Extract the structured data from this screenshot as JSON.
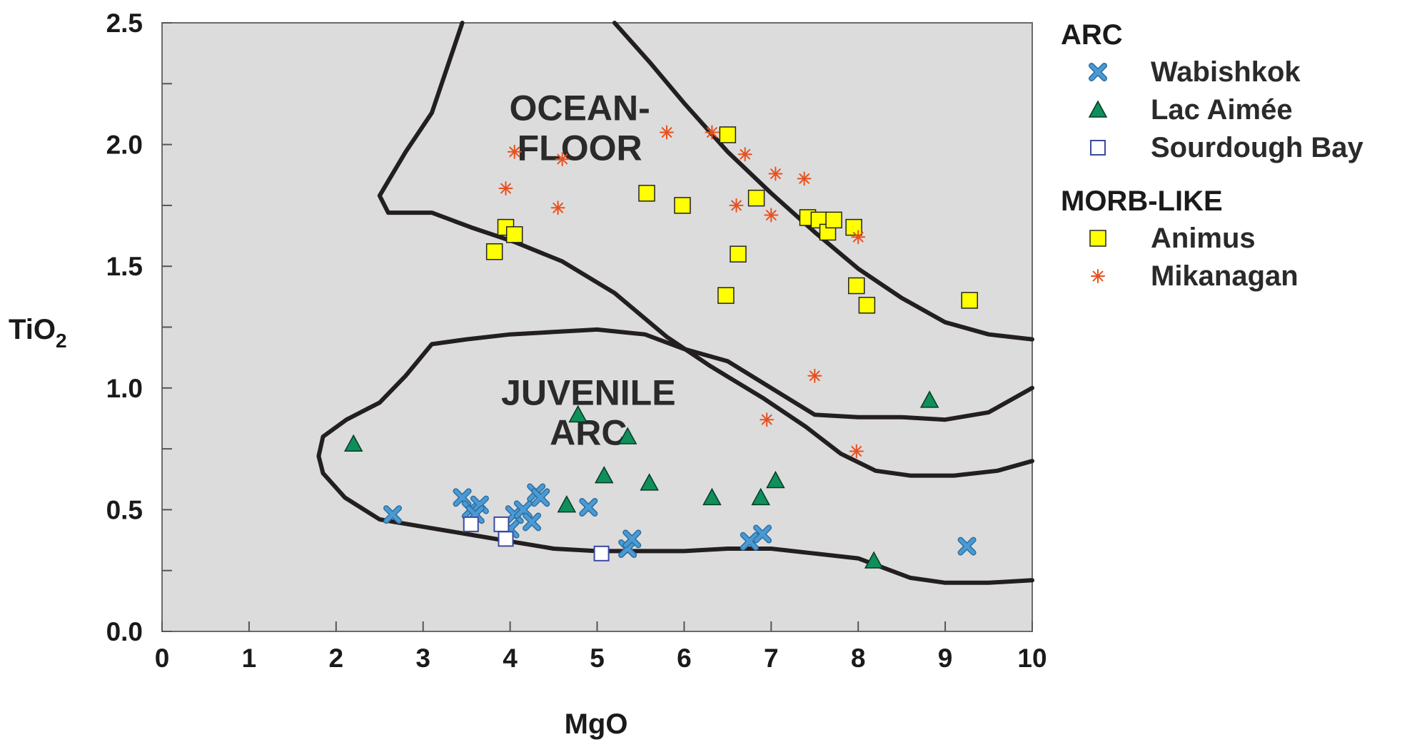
{
  "chart_data": {
    "type": "scatter",
    "xlabel": "MgO",
    "ylabel_main": "TiO",
    "ylabel_sub": "2",
    "xlim": [
      0,
      10
    ],
    "ylim": [
      0,
      2.5
    ],
    "xticks": [
      "0",
      "1",
      "2",
      "3",
      "4",
      "5",
      "6",
      "7",
      "8",
      "9",
      "10"
    ],
    "yticks": [
      "0.0",
      "0.5",
      "1.0",
      "1.5",
      "2.0",
      "2.5"
    ],
    "grid": false,
    "background": "#dcdcdc",
    "field_labels": [
      {
        "lines": [
          "OCEAN-",
          "FLOOR"
        ],
        "x": 4.8,
        "y": 2.1
      },
      {
        "lines": [
          "JUVENILE",
          "ARC"
        ],
        "x": 4.9,
        "y": 0.93
      }
    ],
    "legend_groups": [
      {
        "heading": "ARC",
        "series": [
          "Wabishkok",
          "Lac Aimée",
          "Sourdough Bay"
        ]
      },
      {
        "heading": "MORB-LIKE",
        "series": [
          "Animus",
          "Mikanagan"
        ]
      }
    ],
    "series": [
      {
        "name": "Wabishkok",
        "marker": "x",
        "color": "#4a9ad6",
        "points": [
          [
            2.65,
            0.48
          ],
          [
            3.45,
            0.55
          ],
          [
            3.55,
            0.5
          ],
          [
            3.65,
            0.52
          ],
          [
            3.6,
            0.48
          ],
          [
            4.0,
            0.42
          ],
          [
            4.05,
            0.48
          ],
          [
            4.15,
            0.5
          ],
          [
            4.25,
            0.45
          ],
          [
            4.3,
            0.57
          ],
          [
            4.35,
            0.55
          ],
          [
            4.9,
            0.51
          ],
          [
            5.35,
            0.34
          ],
          [
            5.4,
            0.38
          ],
          [
            6.75,
            0.37
          ],
          [
            6.9,
            0.4
          ],
          [
            9.25,
            0.35
          ]
        ]
      },
      {
        "name": "Lac Aimée",
        "marker": "triangle",
        "color": "#0f8f5a",
        "points": [
          [
            2.2,
            0.77
          ],
          [
            4.65,
            0.52
          ],
          [
            4.78,
            0.89
          ],
          [
            5.08,
            0.64
          ],
          [
            5.35,
            0.8
          ],
          [
            5.6,
            0.61
          ],
          [
            6.32,
            0.55
          ],
          [
            6.88,
            0.55
          ],
          [
            7.05,
            0.62
          ],
          [
            8.18,
            0.29
          ],
          [
            8.82,
            0.95
          ]
        ]
      },
      {
        "name": "Sourdough Bay",
        "marker": "open-square",
        "color": "#ffffff",
        "points": [
          [
            3.55,
            0.44
          ],
          [
            3.9,
            0.44
          ],
          [
            3.95,
            0.38
          ],
          [
            5.05,
            0.32
          ]
        ]
      },
      {
        "name": "Animus",
        "marker": "square",
        "color": "#ffff00",
        "points": [
          [
            3.82,
            1.56
          ],
          [
            3.95,
            1.66
          ],
          [
            4.05,
            1.63
          ],
          [
            5.57,
            1.8
          ],
          [
            5.98,
            1.75
          ],
          [
            6.5,
            2.04
          ],
          [
            6.48,
            1.38
          ],
          [
            6.62,
            1.55
          ],
          [
            6.83,
            1.78
          ],
          [
            7.42,
            1.7
          ],
          [
            7.55,
            1.69
          ],
          [
            7.65,
            1.64
          ],
          [
            7.72,
            1.69
          ],
          [
            7.95,
            1.66
          ],
          [
            7.98,
            1.42
          ],
          [
            8.1,
            1.34
          ],
          [
            9.28,
            1.36
          ]
        ]
      },
      {
        "name": "Mikanagan",
        "marker": "asterisk",
        "color": "#e8501e",
        "points": [
          [
            3.95,
            1.82
          ],
          [
            4.05,
            1.97
          ],
          [
            4.55,
            1.74
          ],
          [
            4.6,
            1.94
          ],
          [
            5.8,
            2.05
          ],
          [
            6.32,
            2.05
          ],
          [
            6.6,
            1.75
          ],
          [
            6.7,
            1.96
          ],
          [
            7.0,
            1.71
          ],
          [
            7.05,
            1.88
          ],
          [
            7.38,
            1.86
          ],
          [
            8.0,
            1.62
          ],
          [
            7.5,
            1.05
          ],
          [
            6.95,
            0.87
          ],
          [
            7.98,
            0.74
          ]
        ]
      }
    ],
    "boundaries": [
      [
        [
          3.45,
          2.5
        ],
        [
          3.1,
          2.13
        ],
        [
          2.8,
          1.97
        ],
        [
          2.6,
          1.85
        ],
        [
          2.5,
          1.79
        ],
        [
          2.6,
          1.72
        ],
        [
          3.1,
          1.72
        ],
        [
          3.55,
          1.66
        ],
        [
          4.05,
          1.6
        ],
        [
          4.6,
          1.52
        ],
        [
          5.2,
          1.39
        ],
        [
          5.8,
          1.21
        ],
        [
          6.3,
          1.09
        ],
        [
          6.9,
          0.96
        ],
        [
          7.4,
          0.84
        ],
        [
          7.8,
          0.73
        ],
        [
          8.2,
          0.66
        ],
        [
          8.6,
          0.64
        ],
        [
          9.1,
          0.64
        ],
        [
          9.6,
          0.66
        ],
        [
          10.0,
          0.7
        ]
      ],
      [
        [
          5.2,
          2.5
        ],
        [
          5.6,
          2.34
        ],
        [
          6.0,
          2.17
        ],
        [
          6.5,
          1.97
        ],
        [
          7.0,
          1.8
        ],
        [
          7.5,
          1.64
        ],
        [
          8.0,
          1.49
        ],
        [
          8.5,
          1.37
        ],
        [
          9.0,
          1.27
        ],
        [
          9.5,
          1.22
        ],
        [
          10.0,
          1.2
        ]
      ],
      [
        [
          2.12,
          0.87
        ],
        [
          2.5,
          0.94
        ],
        [
          2.8,
          1.05
        ],
        [
          3.1,
          1.18
        ],
        [
          3.5,
          1.2
        ],
        [
          4.0,
          1.22
        ],
        [
          4.5,
          1.23
        ],
        [
          5.0,
          1.24
        ],
        [
          5.55,
          1.22
        ],
        [
          6.0,
          1.16
        ],
        [
          6.5,
          1.11
        ],
        [
          7.0,
          1.0
        ],
        [
          7.5,
          0.89
        ],
        [
          8.0,
          0.88
        ],
        [
          8.5,
          0.88
        ],
        [
          9.0,
          0.87
        ],
        [
          9.5,
          0.9
        ],
        [
          10.0,
          1.0
        ]
      ],
      [
        [
          2.12,
          0.87
        ],
        [
          1.85,
          0.8
        ],
        [
          1.8,
          0.72
        ],
        [
          1.85,
          0.65
        ],
        [
          2.1,
          0.55
        ],
        [
          2.5,
          0.46
        ],
        [
          3.0,
          0.43
        ],
        [
          3.5,
          0.4
        ],
        [
          4.0,
          0.37
        ],
        [
          4.5,
          0.34
        ],
        [
          5.0,
          0.33
        ],
        [
          5.5,
          0.33
        ],
        [
          6.0,
          0.33
        ],
        [
          6.5,
          0.34
        ],
        [
          7.0,
          0.34
        ],
        [
          7.5,
          0.32
        ],
        [
          8.0,
          0.3
        ],
        [
          8.6,
          0.22
        ],
        [
          9.0,
          0.2
        ],
        [
          9.5,
          0.2
        ],
        [
          10.0,
          0.21
        ]
      ]
    ]
  }
}
